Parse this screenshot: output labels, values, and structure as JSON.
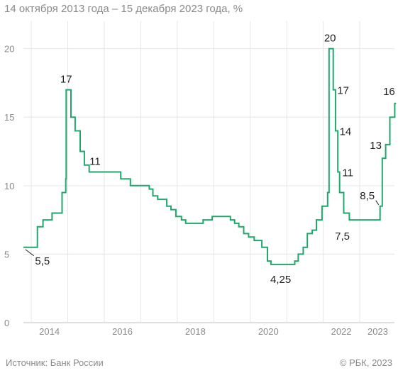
{
  "subtitle": "14 октября 2013 года – 15 декабря 2023 года, %",
  "source": "Источник: Банк России",
  "copyright": "© РБК, 2023",
  "chart_data": {
    "type": "line",
    "step": true,
    "line_color": "#20a86c",
    "grid": true,
    "x_ticks": [
      "2014",
      "2016",
      "2018",
      "2020",
      "2022",
      "2023"
    ],
    "y_ticks": [
      0,
      5,
      10,
      15,
      20
    ],
    "xlim": [
      "2013-10-14",
      "2023-12-15"
    ],
    "ylim": [
      0,
      22
    ],
    "series": [
      {
        "points": [
          [
            "2013-10-14",
            5.5
          ],
          [
            "2014-03-03",
            7.0
          ],
          [
            "2014-04-28",
            7.5
          ],
          [
            "2014-07-28",
            8.0
          ],
          [
            "2014-11-05",
            9.5
          ],
          [
            "2014-12-12",
            10.5
          ],
          [
            "2014-12-16",
            17.0
          ],
          [
            "2015-02-02",
            15.0
          ],
          [
            "2015-03-16",
            14.0
          ],
          [
            "2015-05-05",
            12.5
          ],
          [
            "2015-06-16",
            11.5
          ],
          [
            "2015-08-03",
            11.0
          ],
          [
            "2016-06-14",
            10.5
          ],
          [
            "2016-09-19",
            10.0
          ],
          [
            "2017-03-27",
            9.75
          ],
          [
            "2017-05-02",
            9.25
          ],
          [
            "2017-06-19",
            9.0
          ],
          [
            "2017-09-18",
            8.5
          ],
          [
            "2017-10-30",
            8.25
          ],
          [
            "2017-12-18",
            7.75
          ],
          [
            "2018-02-12",
            7.5
          ],
          [
            "2018-03-26",
            7.25
          ],
          [
            "2018-09-17",
            7.5
          ],
          [
            "2018-12-17",
            7.75
          ],
          [
            "2019-06-17",
            7.5
          ],
          [
            "2019-07-29",
            7.25
          ],
          [
            "2019-09-09",
            7.0
          ],
          [
            "2019-10-28",
            6.5
          ],
          [
            "2019-12-16",
            6.25
          ],
          [
            "2020-02-10",
            6.0
          ],
          [
            "2020-04-27",
            5.5
          ],
          [
            "2020-06-22",
            4.5
          ],
          [
            "2020-07-27",
            4.25
          ],
          [
            "2021-03-22",
            4.5
          ],
          [
            "2021-04-26",
            5.0
          ],
          [
            "2021-06-15",
            5.5
          ],
          [
            "2021-07-26",
            6.5
          ],
          [
            "2021-09-13",
            6.75
          ],
          [
            "2021-10-25",
            7.5
          ],
          [
            "2021-12-20",
            8.5
          ],
          [
            "2022-02-14",
            9.5
          ],
          [
            "2022-02-28",
            20.0
          ],
          [
            "2022-04-11",
            17.0
          ],
          [
            "2022-05-04",
            14.0
          ],
          [
            "2022-05-27",
            11.0
          ],
          [
            "2022-06-14",
            9.5
          ],
          [
            "2022-07-25",
            8.0
          ],
          [
            "2022-09-19",
            7.5
          ],
          [
            "2023-07-24",
            8.5
          ],
          [
            "2023-08-15",
            12.0
          ],
          [
            "2023-09-18",
            13.0
          ],
          [
            "2023-10-30",
            15.0
          ],
          [
            "2023-12-18",
            16.0
          ],
          [
            "2023-12-31",
            16.0
          ]
        ]
      }
    ],
    "annotations": [
      {
        "text": "5,5",
        "x": "2013-12-01",
        "y": 5.5
      },
      {
        "text": "17",
        "x": "2014-12-16",
        "y": 17.0
      },
      {
        "text": "11",
        "x": "2015-10-01",
        "y": 11.0
      },
      {
        "text": "4,25",
        "x": "2020-11-01",
        "y": 4.25
      },
      {
        "text": "20",
        "x": "2022-03-10",
        "y": 20.0
      },
      {
        "text": "17",
        "x": "2022-04-11",
        "y": 17.0
      },
      {
        "text": "14",
        "x": "2022-05-04",
        "y": 14.0
      },
      {
        "text": "11",
        "x": "2022-05-27",
        "y": 11.0
      },
      {
        "text": "7,5",
        "x": "2022-12-15",
        "y": 7.5
      },
      {
        "text": "8,5",
        "x": "2023-07-24",
        "y": 8.5
      },
      {
        "text": "13",
        "x": "2023-09-18",
        "y": 13.0
      },
      {
        "text": "16",
        "x": "2023-12-18",
        "y": 16.0
      }
    ]
  }
}
